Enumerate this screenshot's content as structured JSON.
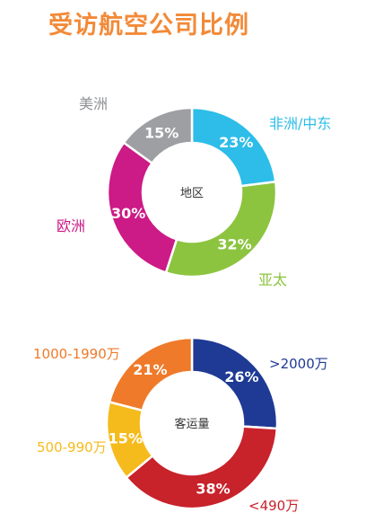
{
  "title": "受访航空公司比例",
  "chart_data": [
    {
      "type": "pie",
      "center_label": "地区",
      "slices": [
        {
          "label": "非洲/中东",
          "value": 23,
          "display": "23%",
          "color": "#2dbde8"
        },
        {
          "label": "亚太",
          "value": 32,
          "display": "32%",
          "color": "#8cc43f"
        },
        {
          "label": "欧洲",
          "value": 30,
          "display": "30%",
          "color": "#cc1a86"
        },
        {
          "label": "美洲",
          "value": 15,
          "display": "15%",
          "color": "#9d9fa2"
        }
      ]
    },
    {
      "type": "pie",
      "center_label": "客运量",
      "slices": [
        {
          "label": ">2000万",
          "value": 26,
          "display": "26%",
          "color": "#1e3a94"
        },
        {
          "label": "<490万",
          "value": 38,
          "display": "38%",
          "color": "#c8222b"
        },
        {
          "label": "500-990万",
          "value": 15,
          "display": "15%",
          "color": "#f5bb1c"
        },
        {
          "label": "1000-1990万",
          "value": 21,
          "display": "21%",
          "color": "#ef7a2a"
        }
      ]
    }
  ]
}
